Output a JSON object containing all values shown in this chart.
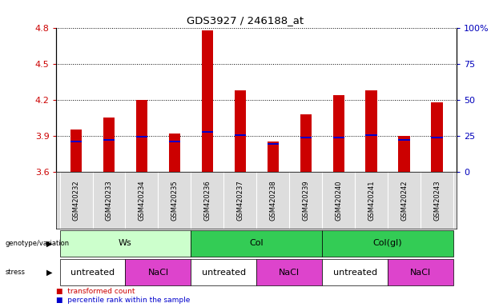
{
  "title": "GDS3927 / 246188_at",
  "samples": [
    "GSM420232",
    "GSM420233",
    "GSM420234",
    "GSM420235",
    "GSM420236",
    "GSM420237",
    "GSM420238",
    "GSM420239",
    "GSM420240",
    "GSM420241",
    "GSM420242",
    "GSM420243"
  ],
  "red_values": [
    3.95,
    4.05,
    4.2,
    3.92,
    4.78,
    4.28,
    3.85,
    4.08,
    4.24,
    4.28,
    3.9,
    4.18
  ],
  "blue_values": [
    3.855,
    3.868,
    3.895,
    3.855,
    3.932,
    3.908,
    3.832,
    3.888,
    3.888,
    3.908,
    3.868,
    3.888
  ],
  "ylim": [
    3.6,
    4.8
  ],
  "yticks_left": [
    3.6,
    3.9,
    4.2,
    4.5,
    4.8
  ],
  "yticks_right": [
    0,
    25,
    50,
    75,
    100
  ],
  "yticks_right_labels": [
    "0",
    "25",
    "50",
    "75",
    "100%"
  ],
  "bar_bottom": 3.6,
  "bar_color": "#cc0000",
  "blue_color": "#0000cc",
  "bg_color": "#ffffff",
  "tick_label_color_left": "#cc0000",
  "tick_label_color_right": "#0000bb",
  "genotype_data": [
    {
      "label": "Ws",
      "start": 0,
      "end": 3,
      "color": "#ccffcc"
    },
    {
      "label": "Col",
      "start": 4,
      "end": 7,
      "color": "#33cc55"
    },
    {
      "label": "Col(gl)",
      "start": 8,
      "end": 11,
      "color": "#33cc55"
    }
  ],
  "stress_data": [
    {
      "label": "untreated",
      "start": 0,
      "end": 1,
      "color": "#ffffff"
    },
    {
      "label": "NaCl",
      "start": 2,
      "end": 3,
      "color": "#dd44cc"
    },
    {
      "label": "untreated",
      "start": 4,
      "end": 5,
      "color": "#ffffff"
    },
    {
      "label": "NaCl",
      "start": 6,
      "end": 7,
      "color": "#dd44cc"
    },
    {
      "label": "untreated",
      "start": 8,
      "end": 9,
      "color": "#ffffff"
    },
    {
      "label": "NaCl",
      "start": 10,
      "end": 11,
      "color": "#dd44cc"
    }
  ]
}
